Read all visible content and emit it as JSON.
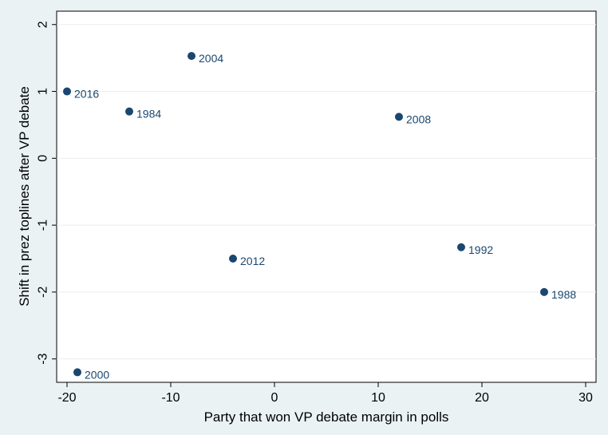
{
  "chart_data": {
    "type": "scatter",
    "title": "",
    "xlabel": "Party that won VP debate margin in polls",
    "ylabel": "Shift in prez toplines after VP debate",
    "xlim": [
      -21,
      31
    ],
    "ylim": [
      -3.35,
      2.2
    ],
    "xticks": [
      -20,
      -10,
      0,
      10,
      20,
      30
    ],
    "xtick_labels": [
      "-20",
      "-10",
      "0",
      "10",
      "20",
      "30"
    ],
    "yticks": [
      -3,
      -2,
      -1,
      0,
      1,
      2
    ],
    "ytick_labels": [
      "-3",
      "-2",
      "-1",
      "0",
      "1",
      "2"
    ],
    "grid": "horizontal",
    "legend": "none",
    "marker_color": "#1a476f",
    "points": [
      {
        "x": -20,
        "y": 1.0,
        "label": "2016"
      },
      {
        "x": -14,
        "y": 0.7,
        "label": "1984"
      },
      {
        "x": -8,
        "y": 1.53,
        "label": "2004"
      },
      {
        "x": -19,
        "y": -3.2,
        "label": "2000"
      },
      {
        "x": -4,
        "y": -1.5,
        "label": "2012"
      },
      {
        "x": 12,
        "y": 0.62,
        "label": "2008"
      },
      {
        "x": 18,
        "y": -1.33,
        "label": "1992"
      },
      {
        "x": 26,
        "y": -2.0,
        "label": "1988"
      }
    ]
  }
}
